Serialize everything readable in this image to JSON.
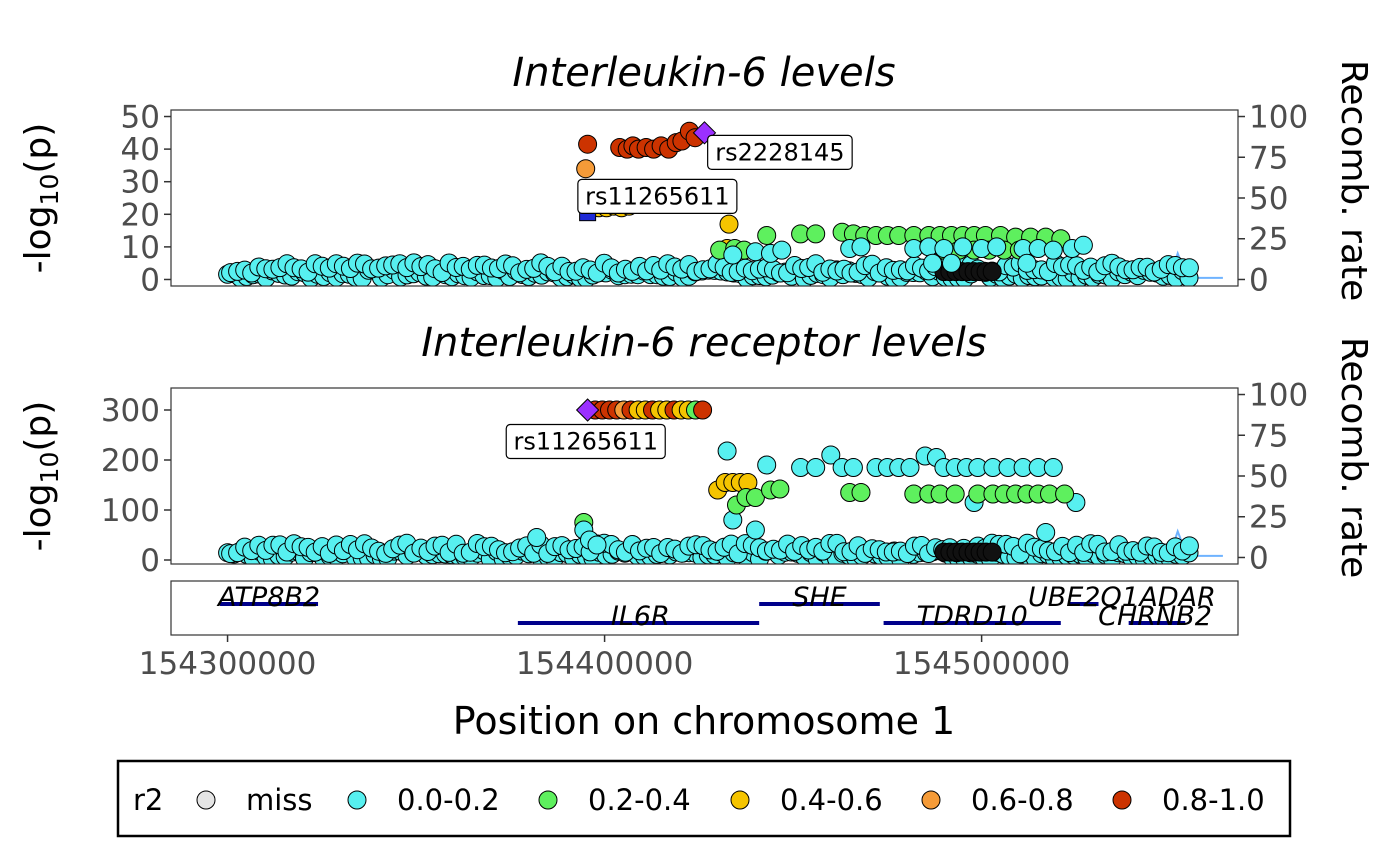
{
  "colors": {
    "miss": "#e5e5e5",
    "r0_2": "#57f0f0",
    "r2_4": "#5ef05e",
    "r4_6": "#f5c400",
    "r6_8": "#f59b38",
    "r8_10": "#cc3300",
    "lead": "#9b30ff",
    "highlight": "#1f2ad6",
    "gene": "#00008b",
    "recomb": "#6fb3ff"
  },
  "x_axis": {
    "title": "Position on chromosome 1",
    "range": [
      154285000,
      154568000
    ],
    "ticks": [
      154300000,
      154400000,
      154500000
    ],
    "tick_labels": [
      "154300000",
      "154400000",
      "154500000"
    ]
  },
  "chart_data": [
    {
      "type": "scatter",
      "title": "Interleukin-6 levels",
      "ylabel_prefix": "-log",
      "ylabel_sub": "10",
      "ylabel_suffix": "(p)",
      "ylim": [
        -2,
        52
      ],
      "y_ticks": [
        0,
        10,
        20,
        30,
        40,
        50
      ],
      "recomb_label": "Recomb. rate",
      "recomb_ylim": [
        -4,
        104
      ],
      "recomb_ticks": [
        0,
        25,
        50,
        75,
        100
      ],
      "labels": [
        {
          "text": "rs2228145",
          "x": 154446500,
          "y": 39
        },
        {
          "text": "rs11265611",
          "x": 154414000,
          "y": 25.5
        }
      ],
      "lead": {
        "x": 154426500,
        "y": 45
      },
      "highlight": {
        "x": 154395500,
        "y": 20.5
      },
      "points": [
        {
          "x": 154395500,
          "y": 41.5,
          "r2": "0.8-1.0"
        },
        {
          "x": 154404000,
          "y": 40.5,
          "r2": "0.8-1.0"
        },
        {
          "x": 154406000,
          "y": 40.0,
          "r2": "0.8-1.0"
        },
        {
          "x": 154407500,
          "y": 41.0,
          "r2": "0.8-1.0"
        },
        {
          "x": 154409000,
          "y": 40.0,
          "r2": "0.8-1.0"
        },
        {
          "x": 154411000,
          "y": 40.5,
          "r2": "0.8-1.0"
        },
        {
          "x": 154413000,
          "y": 40.0,
          "r2": "0.8-1.0"
        },
        {
          "x": 154415000,
          "y": 41.0,
          "r2": "0.8-1.0"
        },
        {
          "x": 154417000,
          "y": 40.0,
          "r2": "0.8-1.0"
        },
        {
          "x": 154419000,
          "y": 42.0,
          "r2": "0.8-1.0"
        },
        {
          "x": 154420500,
          "y": 42.5,
          "r2": "0.8-1.0"
        },
        {
          "x": 154422500,
          "y": 45.5,
          "r2": "0.8-1.0"
        },
        {
          "x": 154424000,
          "y": 43.5,
          "r2": "0.8-1.0"
        },
        {
          "x": 154395000,
          "y": 34.0,
          "r2": "0.6-0.8"
        },
        {
          "x": 154396500,
          "y": 22.5,
          "r2": "0.4-0.6"
        },
        {
          "x": 154398500,
          "y": 22.0,
          "r2": "0.4-0.6"
        },
        {
          "x": 154400500,
          "y": 22.0,
          "r2": "0.4-0.6"
        },
        {
          "x": 154402500,
          "y": 22.5,
          "r2": "0.4-0.6"
        },
        {
          "x": 154404500,
          "y": 22.0,
          "r2": "0.4-0.6"
        },
        {
          "x": 154406500,
          "y": 22.5,
          "r2": "0.4-0.6"
        },
        {
          "x": 154433000,
          "y": 17.0,
          "r2": "0.4-0.6"
        },
        {
          "x": 154432500,
          "y": 9.5,
          "r2": "0.4-0.6"
        },
        {
          "x": 154430500,
          "y": 9.0,
          "r2": "0.2-0.4"
        },
        {
          "x": 154434500,
          "y": 9.5,
          "r2": "0.2-0.4"
        },
        {
          "x": 154437000,
          "y": 9.0,
          "r2": "0.2-0.4"
        },
        {
          "x": 154443000,
          "y": 13.5,
          "r2": "0.2-0.4"
        },
        {
          "x": 154452000,
          "y": 14.0,
          "r2": "0.2-0.4"
        },
        {
          "x": 154456000,
          "y": 14.0,
          "r2": "0.2-0.4"
        },
        {
          "x": 154463000,
          "y": 14.5,
          "r2": "0.2-0.4"
        },
        {
          "x": 154466000,
          "y": 14.0,
          "r2": "0.2-0.4"
        },
        {
          "x": 154469000,
          "y": 13.5,
          "r2": "0.2-0.4"
        },
        {
          "x": 154472000,
          "y": 13.5,
          "r2": "0.2-0.4"
        },
        {
          "x": 154475000,
          "y": 13.5,
          "r2": "0.2-0.4"
        },
        {
          "x": 154478000,
          "y": 13.5,
          "r2": "0.2-0.4"
        },
        {
          "x": 154482000,
          "y": 13.5,
          "r2": "0.2-0.4"
        },
        {
          "x": 154486000,
          "y": 13.5,
          "r2": "0.2-0.4"
        },
        {
          "x": 154489000,
          "y": 13.5,
          "r2": "0.2-0.4"
        },
        {
          "x": 154492000,
          "y": 13.5,
          "r2": "0.2-0.4"
        },
        {
          "x": 154495000,
          "y": 13.5,
          "r2": "0.2-0.4"
        },
        {
          "x": 154498000,
          "y": 13.5,
          "r2": "0.2-0.4"
        },
        {
          "x": 154501000,
          "y": 13.5,
          "r2": "0.2-0.4"
        },
        {
          "x": 154505000,
          "y": 13.5,
          "r2": "0.2-0.4"
        },
        {
          "x": 154509000,
          "y": 13.0,
          "r2": "0.2-0.4"
        },
        {
          "x": 154513000,
          "y": 13.0,
          "r2": "0.2-0.4"
        },
        {
          "x": 154517000,
          "y": 13.0,
          "r2": "0.2-0.4"
        },
        {
          "x": 154521000,
          "y": 12.5,
          "r2": "0.2-0.4"
        },
        {
          "x": 154490000,
          "y": 9.0,
          "r2": "0.2-0.4"
        },
        {
          "x": 154494000,
          "y": 9.0,
          "r2": "0.2-0.4"
        },
        {
          "x": 154498000,
          "y": 9.0,
          "r2": "0.2-0.4"
        },
        {
          "x": 154502000,
          "y": 9.0,
          "r2": "0.2-0.4"
        },
        {
          "x": 154506000,
          "y": 9.0,
          "r2": "0.2-0.4"
        },
        {
          "x": 154510000,
          "y": 9.0,
          "r2": "0.2-0.4"
        },
        {
          "x": 154434000,
          "y": 7.5,
          "r2": "0.0-0.2"
        },
        {
          "x": 154440000,
          "y": 8.5,
          "r2": "0.0-0.2"
        },
        {
          "x": 154444000,
          "y": 8.0,
          "r2": "0.0-0.2"
        },
        {
          "x": 154447000,
          "y": 9.0,
          "r2": "0.0-0.2"
        },
        {
          "x": 154465000,
          "y": 9.5,
          "r2": "0.0-0.2"
        },
        {
          "x": 154468000,
          "y": 10.0,
          "r2": "0.0-0.2"
        },
        {
          "x": 154482000,
          "y": 9.5,
          "r2": "0.0-0.2"
        },
        {
          "x": 154486000,
          "y": 10.0,
          "r2": "0.0-0.2"
        },
        {
          "x": 154490000,
          "y": 9.5,
          "r2": "0.0-0.2"
        },
        {
          "x": 154495000,
          "y": 10.0,
          "r2": "0.0-0.2"
        },
        {
          "x": 154500000,
          "y": 9.5,
          "r2": "0.0-0.2"
        },
        {
          "x": 154504000,
          "y": 10.0,
          "r2": "0.0-0.2"
        },
        {
          "x": 154511000,
          "y": 9.5,
          "r2": "0.0-0.2"
        },
        {
          "x": 154515000,
          "y": 9.5,
          "r2": "0.0-0.2"
        },
        {
          "x": 154519000,
          "y": 9.0,
          "r2": "0.0-0.2"
        },
        {
          "x": 154524000,
          "y": 9.5,
          "r2": "0.0-0.2"
        },
        {
          "x": 154527000,
          "y": 10.5,
          "r2": "0.0-0.2"
        },
        {
          "x": 154487000,
          "y": 5.0,
          "r2": "0.0-0.2"
        },
        {
          "x": 154492000,
          "y": 5.0,
          "r2": "0.0-0.2"
        },
        {
          "x": 154512000,
          "y": 5.0,
          "r2": "0.0-0.2"
        }
      ],
      "baseline": {
        "from": 154300000,
        "to": 154556000,
        "spacing": 1700,
        "r2": "0.0-0.2"
      },
      "black_cluster": {
        "from": 154490000,
        "to": 154504000,
        "spacing": 1600
      },
      "recomb": [
        {
          "x": 154300000,
          "y": 1
        },
        {
          "x": 154430000,
          "y": 1
        },
        {
          "x": 154480000,
          "y": 1
        },
        {
          "x": 154550000,
          "y": 2
        },
        {
          "x": 154552000,
          "y": 16
        },
        {
          "x": 154554000,
          "y": 4
        },
        {
          "x": 154556000,
          "y": 1
        },
        {
          "x": 154564000,
          "y": 1
        }
      ]
    },
    {
      "type": "scatter",
      "title": "Interleukin-6 receptor levels",
      "ylabel_prefix": "-log",
      "ylabel_sub": "10",
      "ylabel_suffix": "(p)",
      "ylim": [
        -8,
        344
      ],
      "y_ticks": [
        0,
        100,
        200,
        300
      ],
      "recomb_label": "Recomb. rate",
      "recomb_ylim": [
        -4,
        104
      ],
      "recomb_ticks": [
        0,
        25,
        50,
        75,
        100
      ],
      "labels": [
        {
          "text": "rs11265611",
          "x": 154395000,
          "y": 237
        }
      ],
      "lead": {
        "x": 154395500,
        "y": 300
      },
      "plateau": {
        "from": 154397500,
        "to": 154427500,
        "spacing": 1900,
        "y": 300
      },
      "points": [
        {
          "x": 154443000,
          "y": 190,
          "r2": "0.0-0.2"
        },
        {
          "x": 154432500,
          "y": 218,
          "r2": "0.0-0.2"
        },
        {
          "x": 154452000,
          "y": 185,
          "r2": "0.0-0.2"
        },
        {
          "x": 154456000,
          "y": 185,
          "r2": "0.0-0.2"
        },
        {
          "x": 154460000,
          "y": 210,
          "r2": "0.0-0.2"
        },
        {
          "x": 154463000,
          "y": 185,
          "r2": "0.0-0.2"
        },
        {
          "x": 154466000,
          "y": 185,
          "r2": "0.0-0.2"
        },
        {
          "x": 154472000,
          "y": 185,
          "r2": "0.0-0.2"
        },
        {
          "x": 154475000,
          "y": 185,
          "r2": "0.0-0.2"
        },
        {
          "x": 154478000,
          "y": 185,
          "r2": "0.0-0.2"
        },
        {
          "x": 154481000,
          "y": 185,
          "r2": "0.0-0.2"
        },
        {
          "x": 154485000,
          "y": 208,
          "r2": "0.0-0.2"
        },
        {
          "x": 154488000,
          "y": 205,
          "r2": "0.0-0.2"
        },
        {
          "x": 154490000,
          "y": 185,
          "r2": "0.0-0.2"
        },
        {
          "x": 154493000,
          "y": 185,
          "r2": "0.0-0.2"
        },
        {
          "x": 154496000,
          "y": 185,
          "r2": "0.0-0.2"
        },
        {
          "x": 154499000,
          "y": 185,
          "r2": "0.0-0.2"
        },
        {
          "x": 154503000,
          "y": 185,
          "r2": "0.0-0.2"
        },
        {
          "x": 154507000,
          "y": 185,
          "r2": "0.0-0.2"
        },
        {
          "x": 154511000,
          "y": 185,
          "r2": "0.0-0.2"
        },
        {
          "x": 154515000,
          "y": 185,
          "r2": "0.0-0.2"
        },
        {
          "x": 154519000,
          "y": 185,
          "r2": "0.0-0.2"
        },
        {
          "x": 154498000,
          "y": 115,
          "r2": "0.0-0.2"
        },
        {
          "x": 154525000,
          "y": 115,
          "r2": "0.0-0.2"
        },
        {
          "x": 154440000,
          "y": 60,
          "r2": "0.0-0.2"
        },
        {
          "x": 154434000,
          "y": 80,
          "r2": "0.0-0.2"
        },
        {
          "x": 154517000,
          "y": 55,
          "r2": "0.0-0.2"
        },
        {
          "x": 154382000,
          "y": 45,
          "r2": "0.0-0.2"
        },
        {
          "x": 154430000,
          "y": 140,
          "r2": "0.4-0.6"
        },
        {
          "x": 154432000,
          "y": 155,
          "r2": "0.4-0.6"
        },
        {
          "x": 154434000,
          "y": 155,
          "r2": "0.4-0.6"
        },
        {
          "x": 154436000,
          "y": 155,
          "r2": "0.4-0.6"
        },
        {
          "x": 154438000,
          "y": 155,
          "r2": "0.4-0.6"
        },
        {
          "x": 154394500,
          "y": 75,
          "r2": "0.2-0.4"
        },
        {
          "x": 154435000,
          "y": 110,
          "r2": "0.2-0.4"
        },
        {
          "x": 154437500,
          "y": 125,
          "r2": "0.2-0.4"
        },
        {
          "x": 154440000,
          "y": 125,
          "r2": "0.2-0.4"
        },
        {
          "x": 154444000,
          "y": 140,
          "r2": "0.2-0.4"
        },
        {
          "x": 154446500,
          "y": 142,
          "r2": "0.2-0.4"
        },
        {
          "x": 154465000,
          "y": 135,
          "r2": "0.2-0.4"
        },
        {
          "x": 154468000,
          "y": 135,
          "r2": "0.2-0.4"
        },
        {
          "x": 154482000,
          "y": 132,
          "r2": "0.2-0.4"
        },
        {
          "x": 154486000,
          "y": 132,
          "r2": "0.2-0.4"
        },
        {
          "x": 154489000,
          "y": 132,
          "r2": "0.2-0.4"
        },
        {
          "x": 154493000,
          "y": 132,
          "r2": "0.2-0.4"
        },
        {
          "x": 154499000,
          "y": 132,
          "r2": "0.2-0.4"
        },
        {
          "x": 154503000,
          "y": 132,
          "r2": "0.2-0.4"
        },
        {
          "x": 154506000,
          "y": 132,
          "r2": "0.2-0.4"
        },
        {
          "x": 154509000,
          "y": 132,
          "r2": "0.2-0.4"
        },
        {
          "x": 154512000,
          "y": 132,
          "r2": "0.2-0.4"
        },
        {
          "x": 154515000,
          "y": 132,
          "r2": "0.2-0.4"
        },
        {
          "x": 154518000,
          "y": 132,
          "r2": "0.2-0.4"
        },
        {
          "x": 154522000,
          "y": 132,
          "r2": "0.2-0.4"
        },
        {
          "x": 154394500,
          "y": 60,
          "r2": "0.0-0.2"
        },
        {
          "x": 154396000,
          "y": 40,
          "r2": "0.0-0.2"
        },
        {
          "x": 154398000,
          "y": 30,
          "r2": "0.0-0.2"
        }
      ],
      "baseline": {
        "from": 154300000,
        "to": 154556000,
        "spacing": 1700,
        "r2": "0.0-0.2"
      },
      "black_cluster": {
        "from": 154490000,
        "to": 154504000,
        "spacing": 1600
      },
      "recomb": [
        {
          "x": 154300000,
          "y": 1
        },
        {
          "x": 154430000,
          "y": 1
        },
        {
          "x": 154480000,
          "y": 1
        },
        {
          "x": 154550000,
          "y": 2
        },
        {
          "x": 154552000,
          "y": 16
        },
        {
          "x": 154554000,
          "y": 4
        },
        {
          "x": 154556000,
          "y": 1
        },
        {
          "x": 154564000,
          "y": 1
        }
      ]
    }
  ],
  "genes": [
    {
      "name": "ATP8B2",
      "start": 154298000,
      "end": 154324000,
      "row": 0,
      "label_x": 154311000
    },
    {
      "name": "IL6R",
      "start": 154377000,
      "end": 154441000,
      "row": 1,
      "label_x": 154409500
    },
    {
      "name": "SHE",
      "start": 154441000,
      "end": 154473000,
      "row": 0,
      "label_x": 154457000
    },
    {
      "name": "TDRD10",
      "start": 154474000,
      "end": 154521000,
      "row": 1,
      "label_x": 154497500
    },
    {
      "name": "UBE2Q1",
      "start": 154523000,
      "end": 154531000,
      "row": 0,
      "label_x": 154527000
    },
    {
      "name": "ADAR",
      "start": 154554000,
      "end": 154554000,
      "row": 0,
      "label_x": 154552000
    },
    {
      "name": "CHRNB2",
      "start": 154539000,
      "end": 154554000,
      "row": 1,
      "label_x": 154546000
    }
  ],
  "legend": {
    "title": "r2",
    "items": [
      {
        "label": "miss",
        "color_key": "miss"
      },
      {
        "label": "0.0-0.2",
        "color_key": "r0_2"
      },
      {
        "label": "0.2-0.4",
        "color_key": "r2_4"
      },
      {
        "label": "0.4-0.6",
        "color_key": "r4_6"
      },
      {
        "label": "0.6-0.8",
        "color_key": "r6_8"
      },
      {
        "label": "0.8-1.0",
        "color_key": "r8_10"
      }
    ]
  }
}
